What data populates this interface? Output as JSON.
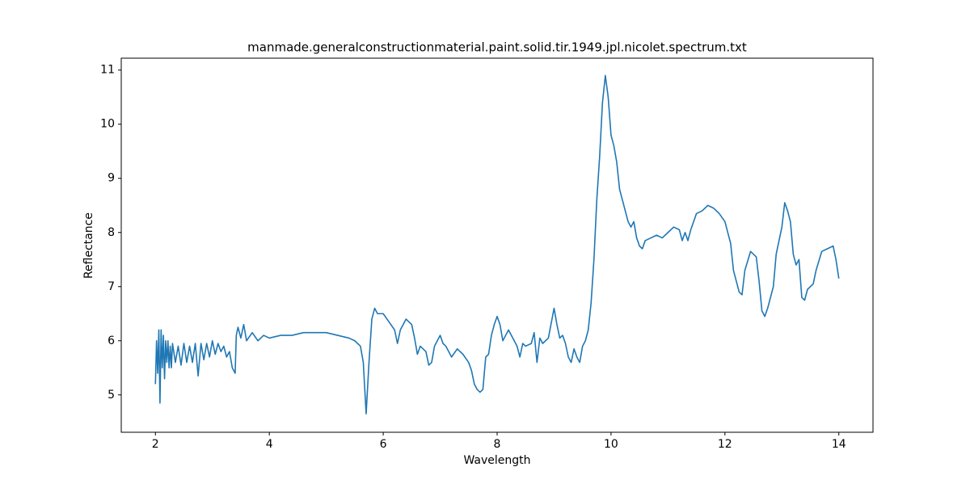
{
  "chart_data": {
    "type": "line",
    "title": "manmade.generalconstructionmaterial.paint.solid.tir.1949.jpl.nicolet.spectrum.txt",
    "x_label": "Wavelength",
    "y_label": "Reflectance",
    "color": "#1f77b4",
    "xlim": [
      1.4,
      14.6
    ],
    "ylim": [
      4.31,
      11.22
    ],
    "xticks": [
      2,
      4,
      6,
      8,
      10,
      12,
      14
    ],
    "yticks": [
      5,
      6,
      7,
      8,
      9,
      10,
      11
    ],
    "x": [
      2.0,
      2.02,
      2.04,
      2.06,
      2.08,
      2.1,
      2.12,
      2.14,
      2.16,
      2.18,
      2.2,
      2.22,
      2.24,
      2.26,
      2.28,
      2.3,
      2.35,
      2.4,
      2.45,
      2.5,
      2.55,
      2.6,
      2.65,
      2.7,
      2.75,
      2.8,
      2.85,
      2.9,
      2.95,
      3.0,
      3.05,
      3.1,
      3.15,
      3.2,
      3.25,
      3.3,
      3.35,
      3.4,
      3.42,
      3.45,
      3.5,
      3.55,
      3.6,
      3.7,
      3.8,
      3.9,
      4.0,
      4.2,
      4.4,
      4.6,
      4.8,
      5.0,
      5.2,
      5.4,
      5.5,
      5.6,
      5.65,
      5.7,
      5.75,
      5.8,
      5.85,
      5.9,
      6.0,
      6.1,
      6.2,
      6.25,
      6.3,
      6.4,
      6.5,
      6.55,
      6.6,
      6.65,
      6.7,
      6.75,
      6.8,
      6.85,
      6.9,
      6.95,
      7.0,
      7.05,
      7.1,
      7.2,
      7.3,
      7.4,
      7.5,
      7.55,
      7.6,
      7.65,
      7.7,
      7.75,
      7.8,
      7.85,
      7.9,
      7.95,
      8.0,
      8.05,
      8.1,
      8.15,
      8.2,
      8.3,
      8.35,
      8.4,
      8.45,
      8.5,
      8.6,
      8.65,
      8.7,
      8.75,
      8.8,
      8.9,
      9.0,
      9.05,
      9.1,
      9.15,
      9.2,
      9.25,
      9.3,
      9.35,
      9.4,
      9.45,
      9.5,
      9.55,
      9.6,
      9.65,
      9.7,
      9.75,
      9.8,
      9.85,
      9.9,
      9.95,
      10.0,
      10.05,
      10.1,
      10.15,
      10.2,
      10.25,
      10.3,
      10.35,
      10.4,
      10.45,
      10.5,
      10.55,
      10.6,
      10.7,
      10.8,
      10.9,
      11.0,
      11.1,
      11.2,
      11.25,
      11.3,
      11.35,
      11.4,
      11.5,
      11.6,
      11.7,
      11.8,
      11.9,
      12.0,
      12.1,
      12.15,
      12.2,
      12.25,
      12.3,
      12.35,
      12.45,
      12.55,
      12.6,
      12.65,
      12.7,
      12.75,
      12.85,
      12.9,
      13.0,
      13.05,
      13.1,
      13.15,
      13.2,
      13.25,
      13.3,
      13.35,
      13.4,
      13.45,
      13.55,
      13.6,
      13.7,
      13.8,
      13.9,
      13.95,
      14.0
    ],
    "values": [
      5.2,
      6.0,
      5.4,
      6.2,
      4.85,
      6.2,
      5.5,
      6.1,
      5.3,
      6.0,
      5.6,
      6.0,
      5.5,
      5.9,
      5.5,
      5.95,
      5.6,
      5.9,
      5.55,
      5.95,
      5.6,
      5.9,
      5.6,
      5.95,
      5.35,
      5.95,
      5.65,
      5.95,
      5.7,
      6.0,
      5.75,
      5.95,
      5.8,
      5.9,
      5.7,
      5.8,
      5.5,
      5.4,
      6.1,
      6.25,
      6.05,
      6.3,
      6.0,
      6.15,
      6.0,
      6.1,
      6.05,
      6.1,
      6.1,
      6.15,
      6.15,
      6.15,
      6.1,
      6.05,
      6.0,
      5.9,
      5.6,
      4.65,
      5.6,
      6.4,
      6.6,
      6.5,
      6.5,
      6.35,
      6.2,
      5.95,
      6.2,
      6.4,
      6.3,
      6.05,
      5.75,
      5.9,
      5.85,
      5.8,
      5.55,
      5.6,
      5.9,
      6.0,
      6.1,
      5.95,
      5.9,
      5.7,
      5.85,
      5.75,
      5.6,
      5.45,
      5.2,
      5.1,
      5.05,
      5.1,
      5.7,
      5.75,
      6.1,
      6.3,
      6.45,
      6.3,
      6.0,
      6.1,
      6.2,
      6.0,
      5.9,
      5.7,
      5.95,
      5.9,
      5.95,
      6.15,
      5.6,
      6.05,
      5.95,
      6.05,
      6.6,
      6.3,
      6.05,
      6.1,
      5.95,
      5.7,
      5.6,
      5.85,
      5.7,
      5.6,
      5.9,
      6.0,
      6.2,
      6.7,
      7.5,
      8.6,
      9.4,
      10.4,
      10.9,
      10.5,
      9.8,
      9.6,
      9.3,
      8.8,
      8.6,
      8.4,
      8.2,
      8.1,
      8.2,
      7.9,
      7.75,
      7.7,
      7.85,
      7.9,
      7.95,
      7.9,
      8.0,
      8.1,
      8.05,
      7.85,
      8.0,
      7.85,
      8.05,
      8.35,
      8.4,
      8.5,
      8.45,
      8.35,
      8.2,
      7.8,
      7.3,
      7.1,
      6.9,
      6.85,
      7.3,
      7.65,
      7.55,
      7.1,
      6.55,
      6.45,
      6.6,
      7.0,
      7.6,
      8.1,
      8.55,
      8.4,
      8.2,
      7.6,
      7.4,
      7.5,
      6.8,
      6.75,
      6.95,
      7.05,
      7.3,
      7.65,
      7.7,
      7.75,
      7.5,
      7.15
    ]
  }
}
